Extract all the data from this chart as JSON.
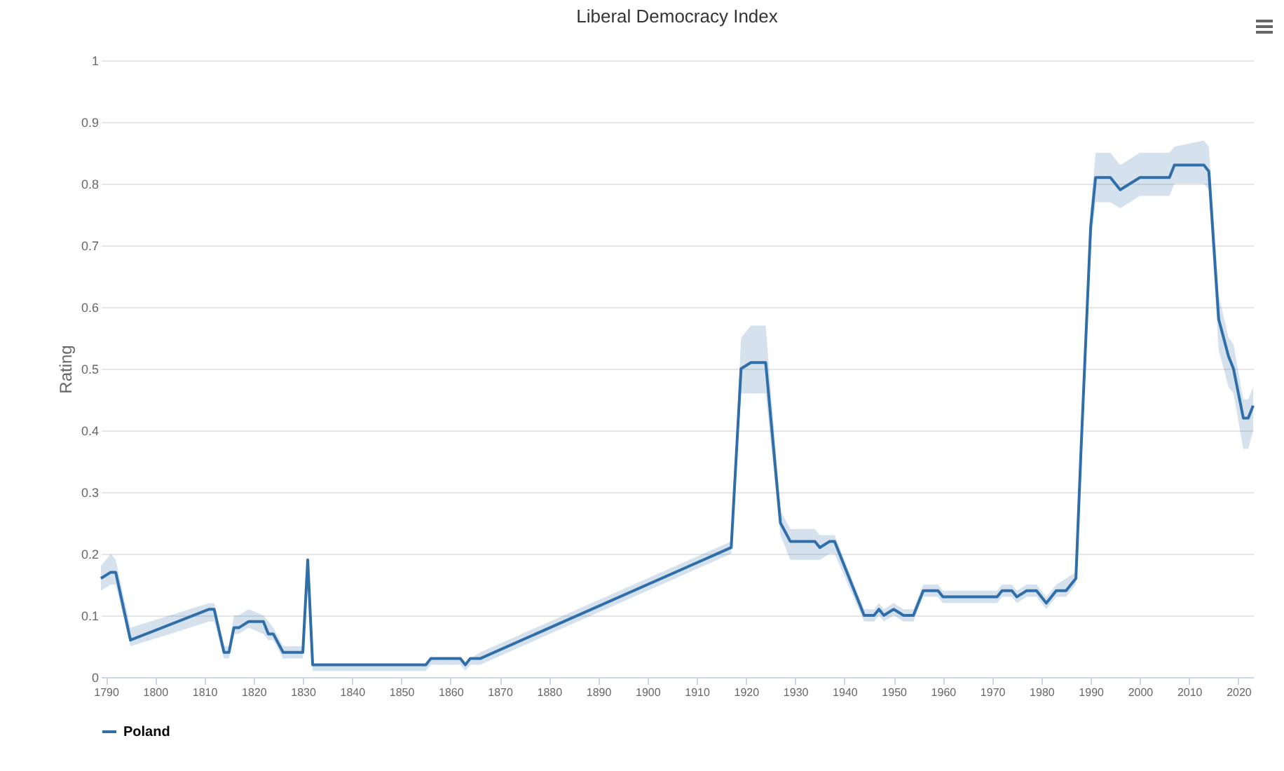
{
  "chart_data": {
    "type": "line",
    "title": "Liberal Democracy Index",
    "ylabel": "Rating",
    "xlim": [
      1789,
      2023
    ],
    "xticks": [
      1790,
      1800,
      1810,
      1820,
      1830,
      1840,
      1850,
      1860,
      1870,
      1880,
      1890,
      1900,
      1910,
      1920,
      1930,
      1940,
      1950,
      1960,
      1970,
      1980,
      1990,
      2000,
      2010,
      2020
    ],
    "ylim": [
      0,
      1
    ],
    "yticks": [
      0,
      0.1,
      0.2,
      0.3,
      0.4,
      0.5,
      0.6,
      0.7,
      0.8,
      0.9,
      1
    ],
    "grid": "y",
    "legend": "bottom",
    "x": [
      1789,
      1791,
      1792,
      1795,
      1811,
      1812,
      1814,
      1815,
      1816,
      1817,
      1819,
      1822,
      1823,
      1824,
      1826,
      1830,
      1831,
      1832,
      1855,
      1856,
      1862,
      1863,
      1864,
      1866,
      1917,
      1919,
      1921,
      1924,
      1927,
      1929,
      1934,
      1935,
      1937,
      1938,
      1944,
      1946,
      1947,
      1948,
      1950,
      1952,
      1954,
      1956,
      1959,
      1960,
      1971,
      1972,
      1974,
      1975,
      1977,
      1979,
      1981,
      1983,
      1985,
      1987,
      1988,
      1990,
      1991,
      1994,
      1996,
      1998,
      2000,
      2006,
      2007,
      2013,
      2014,
      2016,
      2018,
      2019,
      2021,
      2022,
      2023
    ],
    "series": [
      {
        "name": "Poland",
        "color": "#2f6ea8",
        "values": [
          0.16,
          0.17,
          0.17,
          0.06,
          0.11,
          0.11,
          0.04,
          0.04,
          0.08,
          0.08,
          0.09,
          0.09,
          0.07,
          0.07,
          0.04,
          0.04,
          0.19,
          0.02,
          0.02,
          0.03,
          0.03,
          0.02,
          0.03,
          0.03,
          0.21,
          0.5,
          0.51,
          0.51,
          0.25,
          0.22,
          0.22,
          0.21,
          0.22,
          0.22,
          0.1,
          0.1,
          0.11,
          0.1,
          0.11,
          0.1,
          0.1,
          0.14,
          0.14,
          0.13,
          0.13,
          0.14,
          0.14,
          0.13,
          0.14,
          0.14,
          0.12,
          0.14,
          0.14,
          0.16,
          0.36,
          0.73,
          0.81,
          0.81,
          0.79,
          0.8,
          0.81,
          0.81,
          0.83,
          0.83,
          0.82,
          0.58,
          0.52,
          0.5,
          0.42,
          0.42,
          0.44
        ],
        "lower": [
          0.14,
          0.15,
          0.15,
          0.05,
          0.09,
          0.09,
          0.03,
          0.03,
          0.07,
          0.07,
          0.08,
          0.07,
          0.06,
          0.06,
          0.03,
          0.03,
          0.18,
          0.01,
          0.01,
          0.02,
          0.02,
          0.01,
          0.02,
          0.02,
          0.2,
          0.46,
          0.46,
          0.46,
          0.23,
          0.19,
          0.19,
          0.19,
          0.2,
          0.2,
          0.09,
          0.09,
          0.1,
          0.09,
          0.1,
          0.09,
          0.09,
          0.13,
          0.13,
          0.12,
          0.12,
          0.13,
          0.13,
          0.12,
          0.13,
          0.13,
          0.11,
          0.13,
          0.13,
          0.15,
          0.34,
          0.7,
          0.77,
          0.77,
          0.76,
          0.77,
          0.78,
          0.78,
          0.8,
          0.8,
          0.79,
          0.53,
          0.47,
          0.46,
          0.37,
          0.37,
          0.4
        ],
        "upper": [
          0.18,
          0.2,
          0.19,
          0.08,
          0.12,
          0.12,
          0.05,
          0.05,
          0.1,
          0.1,
          0.11,
          0.1,
          0.09,
          0.08,
          0.05,
          0.05,
          0.2,
          0.02,
          0.02,
          0.03,
          0.03,
          0.02,
          0.03,
          0.04,
          0.22,
          0.55,
          0.57,
          0.57,
          0.27,
          0.24,
          0.24,
          0.23,
          0.23,
          0.23,
          0.11,
          0.11,
          0.12,
          0.11,
          0.12,
          0.11,
          0.11,
          0.15,
          0.15,
          0.14,
          0.14,
          0.15,
          0.15,
          0.14,
          0.15,
          0.15,
          0.13,
          0.15,
          0.16,
          0.17,
          0.38,
          0.76,
          0.85,
          0.85,
          0.83,
          0.84,
          0.85,
          0.85,
          0.86,
          0.87,
          0.86,
          0.62,
          0.55,
          0.54,
          0.45,
          0.45,
          0.47
        ]
      }
    ]
  }
}
